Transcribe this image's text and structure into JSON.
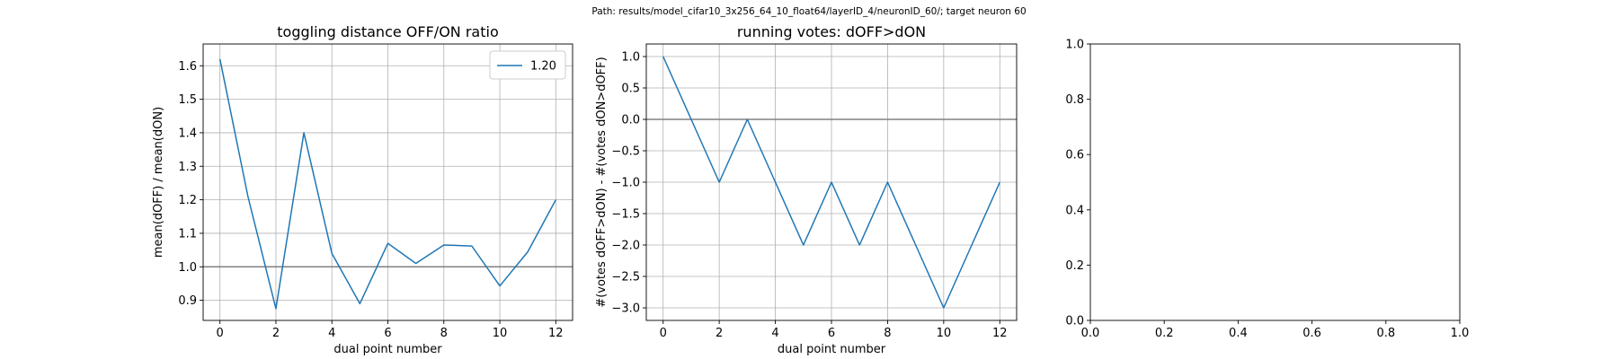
{
  "suptitle": "Path: results/model_cifar10_3x256_64_10_float64/layerID_4/neuronID_60/; target neuron 60",
  "colors": {
    "line": "#1f77b4",
    "refline": "#808080",
    "grid": "#b0b0b0",
    "axes": "#000000"
  },
  "chart_data": [
    {
      "type": "line",
      "title": "toggling distance OFF/ON ratio",
      "xlabel": "dual point number",
      "ylabel": "mean(dOFF) / mean(dON)",
      "xlim": [
        -0.6,
        12.6
      ],
      "ylim": [
        0.84,
        1.665
      ],
      "xticks": [
        0,
        2,
        4,
        6,
        8,
        10,
        12
      ],
      "yticks": [
        0.9,
        1.0,
        1.1,
        1.2,
        1.3,
        1.4,
        1.5,
        1.6
      ],
      "ytick_labels": [
        "0.9",
        "1.0",
        "1.1",
        "1.2",
        "1.3",
        "1.4",
        "1.5",
        "1.6"
      ],
      "grid": true,
      "reference_line_y": 1.0,
      "legend": {
        "position": "upper right",
        "entries": [
          "1.20"
        ]
      },
      "series": [
        {
          "name": "1.20",
          "x": [
            0,
            1,
            2,
            3,
            4,
            5,
            6,
            7,
            8,
            9,
            10,
            11,
            12
          ],
          "y": [
            1.62,
            1.21,
            0.875,
            1.4,
            1.04,
            0.89,
            1.07,
            1.01,
            1.065,
            1.062,
            0.943,
            1.045,
            1.2
          ]
        }
      ]
    },
    {
      "type": "line",
      "title": "running votes: dOFF>dON",
      "xlabel": "dual point number",
      "ylabel": "#(votes dOFF>dON) - #(votes dON>dOFF)",
      "xlim": [
        -0.6,
        12.6
      ],
      "ylim": [
        -3.2,
        1.2
      ],
      "xticks": [
        0,
        2,
        4,
        6,
        8,
        10,
        12
      ],
      "yticks": [
        1.0,
        0.5,
        0.0,
        -0.5,
        -1.0,
        -1.5,
        -2.0,
        -2.5,
        -3.0
      ],
      "ytick_labels": [
        "1.0",
        "0.5",
        "0.0",
        "−0.5",
        "−1.0",
        "−1.5",
        "−2.0",
        "−2.5",
        "−3.0"
      ],
      "grid": true,
      "reference_line_y": 0.0,
      "series": [
        {
          "x": [
            0,
            1,
            2,
            3,
            4,
            5,
            6,
            7,
            8,
            9,
            10,
            11,
            12
          ],
          "y": [
            1,
            0,
            -1,
            0,
            -1,
            -2,
            -1,
            -2,
            -1,
            -2,
            -3,
            -2,
            -1
          ]
        }
      ]
    },
    {
      "type": "line",
      "title": "",
      "xlabel": "",
      "ylabel": "",
      "xlim": [
        0,
        1
      ],
      "ylim": [
        0,
        1
      ],
      "xticks": [
        0.0,
        0.2,
        0.4,
        0.6,
        0.8,
        1.0
      ],
      "yticks": [
        0.0,
        0.2,
        0.4,
        0.6,
        0.8,
        1.0
      ],
      "xtick_labels": [
        "0.0",
        "0.2",
        "0.4",
        "0.6",
        "0.8",
        "1.0"
      ],
      "ytick_labels": [
        "0.0",
        "0.2",
        "0.4",
        "0.6",
        "0.8",
        "1.0"
      ],
      "grid": false,
      "series": []
    }
  ]
}
